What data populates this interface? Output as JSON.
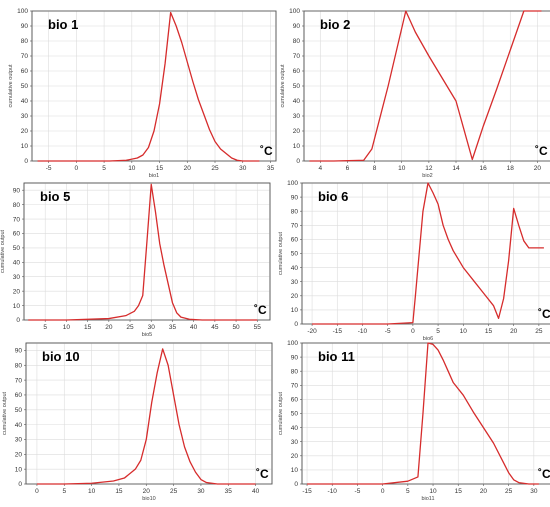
{
  "colors": {
    "curve": "#d62c2c",
    "grid": "#dcdcdc",
    "frame": "#555555"
  },
  "chart_data": [
    {
      "type": "line",
      "title": "bio 1",
      "unit": "˚C",
      "xlabel": "bio1",
      "ylabel": "cumulative output",
      "xlim": [
        -8,
        36
      ],
      "ylim": [
        0,
        100
      ],
      "xticks": [
        -5,
        0,
        5,
        10,
        15,
        20,
        25,
        30,
        35
      ],
      "yticks": [
        0,
        10,
        20,
        30,
        40,
        50,
        60,
        70,
        80,
        90,
        100
      ],
      "grid": true,
      "series": [
        {
          "x": [
            -7,
            0,
            6,
            9,
            11,
            12,
            13,
            14,
            15,
            16,
            17,
            18,
            19,
            20,
            21,
            22,
            23,
            24,
            25,
            26,
            27,
            28,
            29,
            30,
            31,
            33
          ],
          "y": [
            0,
            0,
            0,
            0.5,
            2,
            4,
            9,
            20,
            38,
            65,
            99,
            90,
            79,
            66,
            53,
            41,
            31,
            21,
            13,
            8,
            5,
            2,
            0.5,
            0,
            0,
            0
          ]
        }
      ]
    },
    {
      "type": "line",
      "title": "bio 2",
      "unit": "˚C",
      "xlabel": "bio2",
      "ylabel": "cumulative output",
      "xlim": [
        2.8,
        21
      ],
      "ylim": [
        0,
        100
      ],
      "xticks": [
        4,
        6,
        8,
        10,
        12,
        14,
        16,
        18,
        20
      ],
      "yticks": [
        0,
        10,
        20,
        30,
        40,
        50,
        60,
        70,
        80,
        90,
        100
      ],
      "grid": true,
      "series": [
        {
          "x": [
            3.2,
            5,
            7.2,
            7.8,
            9,
            10.3,
            11,
            12,
            13,
            14,
            15.2,
            16,
            17,
            18,
            19,
            20.3
          ],
          "y": [
            0,
            0,
            0.5,
            8,
            50,
            100,
            86,
            70,
            55,
            40,
            1,
            23,
            48,
            74,
            100,
            100
          ]
        }
      ]
    },
    {
      "type": "line",
      "title": "bio 5",
      "unit": "˚C",
      "xlabel": "bio5",
      "ylabel": "cumulative output",
      "xlim": [
        0,
        58
      ],
      "ylim": [
        0,
        95
      ],
      "xticks": [
        5,
        10,
        15,
        20,
        25,
        30,
        35,
        40,
        45,
        50,
        55
      ],
      "yticks": [
        0,
        10,
        20,
        30,
        40,
        50,
        60,
        70,
        80,
        90
      ],
      "grid": true,
      "series": [
        {
          "x": [
            1,
            10,
            20,
            24,
            26,
            27,
            28,
            29,
            30,
            31,
            32,
            33,
            34,
            35,
            36,
            37,
            39,
            42,
            55
          ],
          "y": [
            0,
            0,
            1,
            3,
            6,
            10,
            17,
            55,
            94,
            75,
            53,
            38,
            25,
            12,
            5,
            2,
            0.5,
            0,
            0
          ]
        }
      ]
    },
    {
      "type": "line",
      "title": "bio 6",
      "unit": "˚C",
      "xlabel": "bio6",
      "ylabel": "cumulative output",
      "xlim": [
        -22,
        28
      ],
      "ylim": [
        0,
        100
      ],
      "xticks": [
        -20,
        -15,
        -10,
        -5,
        0,
        5,
        10,
        15,
        20,
        25
      ],
      "yticks": [
        0,
        10,
        20,
        30,
        40,
        50,
        60,
        70,
        80,
        90,
        100
      ],
      "grid": true,
      "series": [
        {
          "x": [
            -20,
            -5,
            0,
            0.5,
            1,
            2,
            3,
            4,
            5,
            6,
            7,
            8,
            10,
            12,
            14,
            16,
            17,
            18,
            19,
            20,
            21,
            22,
            23,
            26
          ],
          "y": [
            0,
            0,
            1,
            20,
            40,
            80,
            100,
            93,
            85,
            70,
            60,
            52,
            40,
            31,
            22,
            13,
            4,
            18,
            45,
            82,
            70,
            59,
            54,
            54
          ]
        }
      ]
    },
    {
      "type": "line",
      "title": "bio 10",
      "unit": "˚C",
      "xlabel": "bio10",
      "ylabel": "cumulative output",
      "xlim": [
        -2,
        43
      ],
      "ylim": [
        0,
        95
      ],
      "xticks": [
        0,
        5,
        10,
        15,
        20,
        25,
        30,
        35,
        40
      ],
      "yticks": [
        0,
        10,
        20,
        30,
        40,
        50,
        60,
        70,
        80,
        90
      ],
      "grid": true,
      "series": [
        {
          "x": [
            0,
            5,
            10,
            14,
            16,
            18,
            19,
            20,
            21,
            22,
            23,
            24,
            25,
            26,
            27,
            28,
            29,
            30,
            31,
            33,
            40
          ],
          "y": [
            0,
            0,
            0.5,
            2,
            4,
            10,
            16,
            30,
            55,
            75,
            91,
            80,
            60,
            40,
            25,
            15,
            8,
            3,
            1,
            0,
            0
          ]
        }
      ]
    },
    {
      "type": "line",
      "title": "bio 11",
      "unit": "˚C",
      "xlabel": "bio11",
      "ylabel": "cumulative output",
      "xlim": [
        -16,
        34
      ],
      "ylim": [
        0,
        100
      ],
      "xticks": [
        -15,
        -10,
        -5,
        0,
        5,
        10,
        15,
        20,
        25,
        30
      ],
      "yticks": [
        0,
        10,
        20,
        30,
        40,
        50,
        60,
        70,
        80,
        90,
        100
      ],
      "grid": true,
      "series": [
        {
          "x": [
            -15,
            0,
            5,
            7,
            8,
            9,
            10,
            11,
            12,
            13,
            14,
            16,
            18,
            20,
            22,
            24,
            25,
            26,
            27,
            29,
            31
          ],
          "y": [
            0,
            0,
            2,
            5,
            50,
            100,
            99,
            95,
            88,
            80,
            72,
            63,
            51,
            40,
            29,
            15,
            8,
            3,
            1,
            0,
            0
          ]
        }
      ]
    }
  ]
}
